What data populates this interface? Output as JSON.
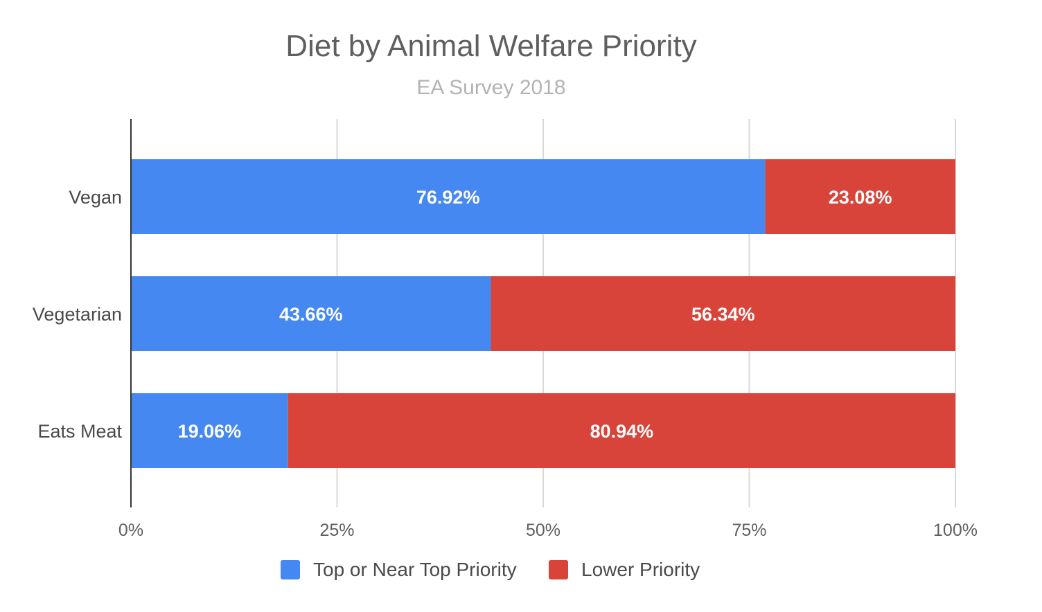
{
  "chart_data": {
    "type": "bar",
    "orientation": "horizontal",
    "stacked": "percent",
    "title": "Diet by Animal Welfare Priority",
    "subtitle": "EA Survey 2018",
    "categories": [
      "Vegan",
      "Vegetarian",
      "Eats Meat"
    ],
    "series": [
      {
        "name": "Top or Near Top Priority",
        "color": "#4688f1",
        "values": [
          76.92,
          43.66,
          19.06
        ]
      },
      {
        "name": "Lower Priority",
        "color": "#d8443a",
        "values": [
          23.08,
          56.34,
          80.94
        ]
      }
    ],
    "data_labels": [
      [
        "76.92%",
        "43.66%",
        "19.06%"
      ],
      [
        "23.08%",
        "56.34%",
        "80.94%"
      ]
    ],
    "xlim": [
      0,
      100
    ],
    "xticks": [
      0,
      25,
      50,
      75,
      100
    ],
    "xtick_labels": [
      "0%",
      "25%",
      "50%",
      "75%",
      "100%"
    ],
    "grid": true,
    "legend": "bottom"
  }
}
